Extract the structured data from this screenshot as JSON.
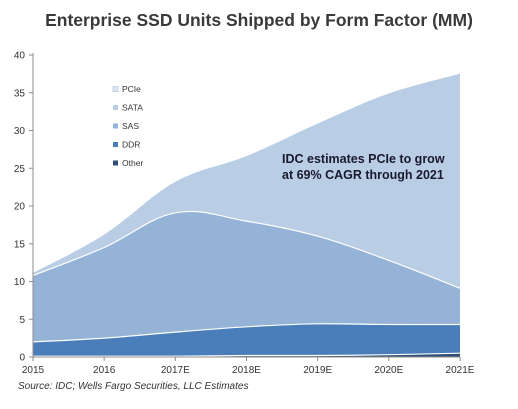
{
  "title": "Enterprise SSD Units Shipped by Form Factor (MM)",
  "annotation": {
    "line1": "IDC estimates PCIe to grow",
    "line2": "at 69% CAGR through 2021"
  },
  "source": "Source: IDC; Wells Fargo Securities, LLC Estimates",
  "chart_data": {
    "type": "area",
    "stacked": true,
    "categories": [
      "2015",
      "2016",
      "2017E",
      "2018E",
      "2019E",
      "2020E",
      "2021E"
    ],
    "series": [
      {
        "name": "Other",
        "values": [
          0.1,
          0.1,
          0.1,
          0.2,
          0.2,
          0.3,
          0.5
        ],
        "color": "#2f4e78"
      },
      {
        "name": "DDR",
        "values": [
          1.9,
          2.4,
          3.2,
          3.8,
          4.2,
          4.0,
          3.8
        ],
        "color": "#4a7ebb"
      },
      {
        "name": "SAS",
        "values": [
          8.8,
          12.0,
          15.8,
          14.0,
          11.6,
          8.5,
          4.8
        ],
        "color": "#95b3d7"
      },
      {
        "name": "SATA",
        "values": [
          0.4,
          1.8,
          4.2,
          8.7,
          15.0,
          22.2,
          28.5
        ],
        "color": "#b9cde5"
      },
      {
        "name": "PCIe",
        "values": [
          0.0,
          0.0,
          0.0,
          0.0,
          0.0,
          0.0,
          0.0
        ],
        "color": "#dbe5f1"
      }
    ],
    "legend_order": [
      "PCIe",
      "SATA",
      "SAS",
      "DDR",
      "Other"
    ],
    "y_ticks": [
      0,
      5,
      10,
      15,
      20,
      25,
      30,
      35,
      40
    ],
    "ylim": [
      0,
      40
    ],
    "grid": false,
    "legend_position": "top-left"
  }
}
